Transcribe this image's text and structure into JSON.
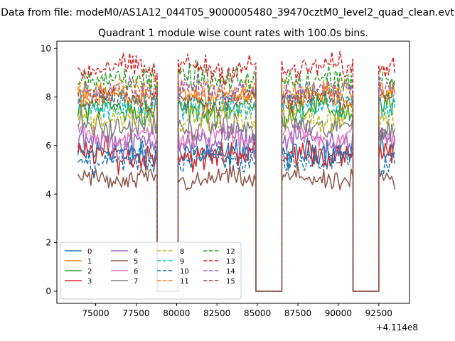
{
  "suptitle": "Data from file: modeM0/AS1A12_044T05_9000005480_39470cztM0_level2_quad_clean.evt",
  "chart_data": {
    "type": "line",
    "title": "Quadrant 1 module wise count rates with 100.0s bins.",
    "xlabel": "",
    "ylabel": "",
    "xlim": [
      72600,
      94400
    ],
    "ylim": [
      -0.5,
      10.3
    ],
    "x_offset_label": "+4.114e8",
    "x_ticks": [
      75000,
      77500,
      80000,
      82500,
      85000,
      87500,
      90000,
      92500
    ],
    "x_tick_labels": [
      "75000",
      "77500",
      "80000",
      "82500",
      "85000",
      "87500",
      "90000",
      "92500"
    ],
    "y_ticks": [
      0,
      2,
      4,
      6,
      8,
      10
    ],
    "y_tick_labels": [
      "0",
      "2",
      "4",
      "6",
      "8",
      "10"
    ],
    "legend_position": "lower-left",
    "legend_columns": 4,
    "segments": [
      {
        "start": 73900,
        "end": 78800,
        "on": true
      },
      {
        "start": 78800,
        "end": 80100,
        "on": false
      },
      {
        "start": 80100,
        "end": 84900,
        "on": true
      },
      {
        "start": 84900,
        "end": 86500,
        "on": false
      },
      {
        "start": 86500,
        "end": 90900,
        "on": true
      },
      {
        "start": 90900,
        "end": 92500,
        "on": false
      },
      {
        "start": 92500,
        "end": 93500,
        "on": true
      }
    ],
    "bin_width": 100,
    "series": [
      {
        "name": "0",
        "mean": 5.7,
        "noise": 0.35,
        "color": "#1f77b4",
        "dash": "solid"
      },
      {
        "name": "1",
        "mean": 8.0,
        "noise": 0.3,
        "color": "#ff7f0e",
        "dash": "solid"
      },
      {
        "name": "2",
        "mean": 7.5,
        "noise": 0.35,
        "color": "#2ca02c",
        "dash": "solid"
      },
      {
        "name": "3",
        "mean": 5.6,
        "noise": 0.35,
        "color": "#d62728",
        "dash": "solid"
      },
      {
        "name": "4",
        "mean": 6.2,
        "noise": 0.35,
        "color": "#9467bd",
        "dash": "solid"
      },
      {
        "name": "5",
        "mean": 4.6,
        "noise": 0.25,
        "color": "#8c564b",
        "dash": "solid"
      },
      {
        "name": "6",
        "mean": 6.4,
        "noise": 0.3,
        "color": "#e377c2",
        "dash": "solid"
      },
      {
        "name": "7",
        "mean": 6.8,
        "noise": 0.35,
        "color": "#7f7f7f",
        "dash": "solid"
      },
      {
        "name": "8",
        "mean": 7.2,
        "noise": 0.35,
        "color": "#bcbd22",
        "dash": "dashed"
      },
      {
        "name": "9",
        "mean": 7.7,
        "noise": 0.35,
        "color": "#17becf",
        "dash": "dashed"
      },
      {
        "name": "10",
        "mean": 5.4,
        "noise": 0.35,
        "color": "#1f77b4",
        "dash": "dashed"
      },
      {
        "name": "11",
        "mean": 8.3,
        "noise": 0.3,
        "color": "#ff7f0e",
        "dash": "dashed"
      },
      {
        "name": "12",
        "mean": 8.7,
        "noise": 0.35,
        "color": "#2ca02c",
        "dash": "dashed"
      },
      {
        "name": "13",
        "mean": 9.2,
        "noise": 0.3,
        "color": "#d62728",
        "dash": "dashed"
      },
      {
        "name": "14",
        "mean": 8.3,
        "noise": 0.3,
        "color": "#9467bd",
        "dash": "dashed"
      },
      {
        "name": "15",
        "mean": 7.9,
        "noise": 0.3,
        "color": "#8c564b",
        "dash": "dashed"
      }
    ]
  }
}
